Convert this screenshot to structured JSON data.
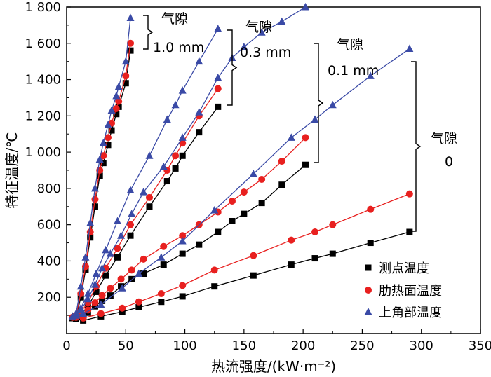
{
  "chart_data": {
    "type": "line",
    "xlabel": "热流强度/(kW·m⁻²)",
    "ylabel": "特征温度/℃",
    "xlim": [
      0,
      350
    ],
    "ylim": [
      0,
      1800
    ],
    "x_ticks": [
      "0",
      "50",
      "100",
      "150",
      "200",
      "250",
      "300",
      "350"
    ],
    "y_ticks": [
      "200",
      "400",
      "600",
      "800",
      "1 000",
      "1 200",
      "1 400",
      "1 600",
      "1 800"
    ],
    "grid": false,
    "legend_position": "bottom-right",
    "series": [
      {
        "name": "测点温度",
        "color": "#000000",
        "marker": "square",
        "groups": [
          {
            "gap": "0",
            "x": [
              5,
              8,
              14,
              29,
              47,
              61,
              80,
              98,
              125,
              158,
              190,
              210,
              225,
              257,
              290
            ],
            "y": [
              85,
              80,
              72,
              95,
              120,
              145,
              175,
              205,
              260,
              320,
              380,
              415,
              440,
              500,
              560
            ]
          },
          {
            "gap": "0.1 mm",
            "x": [
              8,
              12,
              18,
              24,
              30,
              37,
              46,
              55,
              65,
              82,
              98,
              112,
              128,
              140,
              150,
              165,
              182,
              202
            ],
            "y": [
              85,
              90,
              115,
              150,
              180,
              210,
              260,
              300,
              330,
              380,
              440,
              490,
              560,
              620,
              660,
              720,
              820,
              930
            ]
          },
          {
            "gap": "0.3 mm",
            "x": [
              8,
              12,
              18,
              25,
              33,
              43,
              54,
              70,
              85,
              92,
              98,
              112,
              128
            ],
            "y": [
              90,
              105,
              150,
              230,
              320,
              420,
              540,
              700,
              840,
              910,
              980,
              1110,
              1250
            ]
          },
          {
            "gap": "1.0 mm",
            "x": [
              8,
              12,
              16,
              20,
              24,
              28,
              31,
              35,
              38,
              42,
              44,
              50,
              54
            ],
            "y": [
              90,
              200,
              350,
              530,
              700,
              870,
              940,
              1040,
              1120,
              1210,
              1250,
              1380,
              1560
            ]
          }
        ]
      },
      {
        "name": "肋热面温度",
        "color": "#e8201f",
        "marker": "circle",
        "groups": [
          {
            "gap": "0",
            "x": [
              5,
              8,
              14,
              29,
              47,
              61,
              80,
              98,
              125,
              158,
              190,
              210,
              225,
              257,
              290
            ],
            "y": [
              90,
              90,
              85,
              110,
              140,
              175,
              220,
              265,
              350,
              430,
              515,
              560,
              600,
              685,
              770
            ]
          },
          {
            "gap": "0.1 mm",
            "x": [
              8,
              12,
              18,
              24,
              30,
              37,
              46,
              55,
              65,
              82,
              98,
              112,
              128,
              140,
              150,
              165,
              182,
              202
            ],
            "y": [
              90,
              100,
              130,
              170,
              210,
              250,
              300,
              350,
              410,
              480,
              540,
              600,
              670,
              730,
              780,
              850,
              950,
              1080
            ]
          },
          {
            "gap": "0.3 mm",
            "x": [
              8,
              12,
              18,
              25,
              33,
              43,
              54,
              70,
              85,
              92,
              98,
              112,
              128
            ],
            "y": [
              100,
              120,
              170,
              260,
              360,
              470,
              600,
              750,
              900,
              980,
              1050,
              1200,
              1350
            ]
          },
          {
            "gap": "1.0 mm",
            "x": [
              8,
              12,
              16,
              20,
              24,
              28,
              31,
              35,
              38,
              42,
              44,
              50,
              54
            ],
            "y": [
              100,
              220,
              370,
              560,
              740,
              900,
              980,
              1080,
              1160,
              1240,
              1280,
              1420,
              1600
            ]
          }
        ]
      },
      {
        "name": "上角部温度",
        "color": "#3a4aa6",
        "marker": "triangle",
        "groups": [
          {
            "gap": "0",
            "x": [
              5,
              8,
              14,
              29,
              47,
              61,
              80,
              98,
              125,
              158,
              190,
              210,
              225,
              257,
              290
            ],
            "y": [
              95,
              100,
              110,
              160,
              250,
              330,
              420,
              510,
              680,
              880,
              1080,
              1180,
              1260,
              1420,
              1570
            ]
          },
          {
            "gap": "0.1 mm",
            "x": [
              8,
              12,
              18,
              24,
              30,
              37,
              46,
              55,
              65,
              82,
              98,
              112,
              128,
              140,
              150,
              165,
              182,
              202
            ],
            "y": [
              100,
              130,
              190,
              270,
              360,
              440,
              540,
              660,
              780,
              920,
              1080,
              1220,
              1410,
              1520,
              1580,
              1660,
              1720,
              1800
            ]
          },
          {
            "gap": "0.3 mm",
            "x": [
              8,
              12,
              18,
              25,
              33,
              43,
              54,
              70,
              85,
              92,
              98,
              112,
              128
            ],
            "y": [
              110,
              140,
              220,
              330,
              460,
              620,
              790,
              980,
              1180,
              1260,
              1340,
              1500,
              1680
            ]
          },
          {
            "gap": "1.0 mm",
            "x": [
              8,
              12,
              16,
              20,
              24,
              28,
              31,
              35,
              38,
              42,
              44,
              50,
              54
            ],
            "y": [
              110,
              260,
              420,
              610,
              800,
              960,
              1050,
              1150,
              1230,
              1310,
              1360,
              1500,
              1740
            ]
          }
        ]
      }
    ],
    "annotations": [
      {
        "label": "气隙",
        "value": "1.0 mm"
      },
      {
        "label": "气隙",
        "value": "0.3 mm"
      },
      {
        "label": "气隙",
        "value": "0.1 mm"
      },
      {
        "label": "气隙",
        "value": "0"
      }
    ]
  }
}
